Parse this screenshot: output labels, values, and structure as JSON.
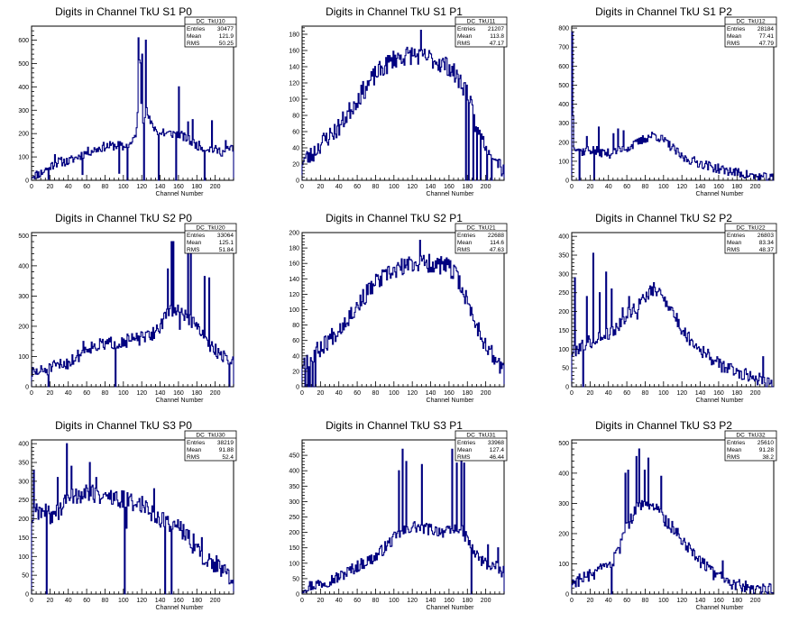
{
  "xlabel": "Channel Number",
  "stat_labels": {
    "entries": "Entries",
    "mean": "Mean",
    "rms": "RMS"
  },
  "chart_data": [
    {
      "type": "histogram",
      "title": "Digits in Channel TkU S1 P0",
      "stat_name": "DC_TkU10",
      "entries": "30477",
      "mean": "121.9",
      "rms": "50.25",
      "xlim": [
        0,
        220
      ],
      "ylim": [
        0,
        660
      ],
      "xticks": [
        0,
        20,
        40,
        60,
        80,
        100,
        120,
        140,
        160,
        180,
        200
      ],
      "yticks": [
        0,
        100,
        200,
        300,
        400,
        500,
        600
      ],
      "anchors": [
        [
          0,
          20
        ],
        [
          10,
          30
        ],
        [
          20,
          60
        ],
        [
          30,
          80
        ],
        [
          40,
          80
        ],
        [
          60,
          120
        ],
        [
          80,
          145
        ],
        [
          95,
          150
        ],
        [
          100,
          140
        ],
        [
          110,
          160
        ],
        [
          115,
          220
        ],
        [
          118,
          590
        ],
        [
          120,
          250
        ],
        [
          125,
          300
        ],
        [
          130,
          240
        ],
        [
          140,
          200
        ],
        [
          160,
          200
        ],
        [
          180,
          150
        ],
        [
          200,
          130
        ],
        [
          210,
          120
        ],
        [
          218,
          140
        ]
      ],
      "noise": 20,
      "seed": 11,
      "spikes": [
        [
          18,
          5
        ],
        [
          25,
          110
        ],
        [
          55,
          25
        ],
        [
          95,
          30
        ],
        [
          102,
          140
        ],
        [
          104,
          0
        ],
        [
          116,
          610
        ],
        [
          120,
          540
        ],
        [
          122,
          0
        ],
        [
          124,
          600
        ],
        [
          138,
          0
        ],
        [
          143,
          220
        ],
        [
          157,
          0
        ],
        [
          160,
          400
        ],
        [
          170,
          250
        ],
        [
          175,
          260
        ],
        [
          188,
          0
        ],
        [
          196,
          255
        ],
        [
          211,
          170
        ]
      ]
    },
    {
      "type": "histogram",
      "title": "Digits in Channel TkU S1 P1",
      "stat_name": "DC_TkU11",
      "entries": "21207",
      "mean": "113.8",
      "rms": "47.17",
      "xlim": [
        0,
        220
      ],
      "ylim": [
        0,
        190
      ],
      "xticks": [
        0,
        20,
        40,
        60,
        80,
        100,
        120,
        140,
        160,
        180,
        200
      ],
      "yticks": [
        0,
        20,
        40,
        60,
        80,
        100,
        120,
        140,
        160,
        180
      ],
      "anchors": [
        [
          0,
          25
        ],
        [
          10,
          30
        ],
        [
          20,
          45
        ],
        [
          40,
          65
        ],
        [
          60,
          100
        ],
        [
          80,
          130
        ],
        [
          100,
          150
        ],
        [
          120,
          155
        ],
        [
          140,
          150
        ],
        [
          160,
          140
        ],
        [
          170,
          125
        ],
        [
          180,
          110
        ],
        [
          190,
          60
        ],
        [
          200,
          45
        ],
        [
          210,
          35
        ],
        [
          218,
          15
        ]
      ],
      "noise": 12,
      "seed": 23,
      "spikes": [
        [
          129,
          185
        ],
        [
          178,
          0
        ],
        [
          181,
          0
        ],
        [
          186,
          0
        ],
        [
          190,
          0
        ],
        [
          194,
          0
        ],
        [
          201,
          0
        ],
        [
          206,
          0
        ]
      ]
    },
    {
      "type": "histogram",
      "title": "Digits in Channel TkU S1 P2",
      "stat_name": "DC_TkU12",
      "entries": "28184",
      "mean": "77.41",
      "rms": "47.79",
      "xlim": [
        0,
        220
      ],
      "ylim": [
        0,
        810
      ],
      "xticks": [
        0,
        20,
        40,
        60,
        80,
        100,
        120,
        140,
        160,
        180,
        200
      ],
      "yticks": [
        0,
        100,
        200,
        300,
        400,
        500,
        600,
        700,
        800
      ],
      "anchors": [
        [
          0,
          200
        ],
        [
          10,
          150
        ],
        [
          20,
          160
        ],
        [
          30,
          150
        ],
        [
          40,
          140
        ],
        [
          50,
          150
        ],
        [
          60,
          170
        ],
        [
          70,
          190
        ],
        [
          80,
          220
        ],
        [
          90,
          240
        ],
        [
          100,
          210
        ],
        [
          110,
          170
        ],
        [
          120,
          120
        ],
        [
          140,
          90
        ],
        [
          160,
          60
        ],
        [
          180,
          40
        ],
        [
          200,
          20
        ],
        [
          218,
          10
        ]
      ],
      "noise": 25,
      "seed": 37,
      "spikes": [
        [
          0,
          780
        ],
        [
          1,
          340
        ],
        [
          8,
          0
        ],
        [
          16,
          230
        ],
        [
          24,
          0
        ],
        [
          29,
          280
        ],
        [
          45,
          245
        ],
        [
          50,
          270
        ],
        [
          56,
          260
        ],
        [
          67,
          205
        ]
      ]
    },
    {
      "type": "histogram",
      "title": "Digits in Channel TkU S2 P0",
      "stat_name": "DC_TkU20",
      "entries": "33064",
      "mean": "125.1",
      "rms": "51.84",
      "xlim": [
        0,
        220
      ],
      "ylim": [
        0,
        510
      ],
      "xticks": [
        0,
        20,
        40,
        60,
        80,
        100,
        120,
        140,
        160,
        180,
        200
      ],
      "yticks": [
        0,
        100,
        200,
        300,
        400,
        500
      ],
      "anchors": [
        [
          0,
          45
        ],
        [
          10,
          50
        ],
        [
          20,
          60
        ],
        [
          30,
          70
        ],
        [
          40,
          80
        ],
        [
          50,
          100
        ],
        [
          60,
          130
        ],
        [
          80,
          140
        ],
        [
          100,
          150
        ],
        [
          120,
          160
        ],
        [
          130,
          170
        ],
        [
          140,
          200
        ],
        [
          150,
          250
        ],
        [
          160,
          250
        ],
        [
          170,
          230
        ],
        [
          180,
          200
        ],
        [
          190,
          150
        ],
        [
          200,
          120
        ],
        [
          210,
          100
        ],
        [
          218,
          80
        ]
      ],
      "noise": 22,
      "seed": 51,
      "spikes": [
        [
          18,
          0
        ],
        [
          56,
          150
        ],
        [
          91,
          0
        ],
        [
          148,
          390
        ],
        [
          152,
          480
        ],
        [
          154,
          480
        ],
        [
          161,
          190
        ],
        [
          170,
          470
        ],
        [
          173,
          440
        ],
        [
          188,
          365
        ],
        [
          193,
          360
        ],
        [
          215,
          0
        ]
      ]
    },
    {
      "type": "histogram",
      "title": "Digits in Channel TkU S2 P1",
      "stat_name": "DC_TkU21",
      "entries": "22688",
      "mean": "114.6",
      "rms": "47.63",
      "xlim": [
        0,
        220
      ],
      "ylim": [
        0,
        200
      ],
      "xticks": [
        0,
        20,
        40,
        60,
        80,
        100,
        120,
        140,
        160,
        180,
        200
      ],
      "yticks": [
        0,
        20,
        40,
        60,
        80,
        100,
        120,
        140,
        160,
        180,
        200
      ],
      "anchors": [
        [
          0,
          30
        ],
        [
          10,
          40
        ],
        [
          20,
          50
        ],
        [
          40,
          75
        ],
        [
          60,
          105
        ],
        [
          80,
          135
        ],
        [
          100,
          150
        ],
        [
          120,
          160
        ],
        [
          140,
          160
        ],
        [
          160,
          155
        ],
        [
          170,
          140
        ],
        [
          180,
          110
        ],
        [
          190,
          80
        ],
        [
          200,
          55
        ],
        [
          210,
          35
        ],
        [
          218,
          25
        ]
      ],
      "noise": 12,
      "seed": 67,
      "spikes": [
        [
          3,
          0
        ],
        [
          6,
          0
        ],
        [
          8,
          0
        ],
        [
          11,
          0
        ],
        [
          14,
          0
        ],
        [
          128,
          190
        ]
      ]
    },
    {
      "type": "histogram",
      "title": "Digits in Channel TkU S2 P2",
      "stat_name": "DC_TkU22",
      "entries": "26803",
      "mean": "83.34",
      "rms": "48.37",
      "xlim": [
        0,
        220
      ],
      "ylim": [
        0,
        410
      ],
      "xticks": [
        0,
        20,
        40,
        60,
        80,
        100,
        120,
        140,
        160,
        180,
        200
      ],
      "yticks": [
        0,
        50,
        100,
        150,
        200,
        250,
        300,
        350,
        400
      ],
      "anchors": [
        [
          0,
          90
        ],
        [
          10,
          110
        ],
        [
          20,
          120
        ],
        [
          30,
          130
        ],
        [
          40,
          140
        ],
        [
          50,
          160
        ],
        [
          60,
          190
        ],
        [
          70,
          210
        ],
        [
          80,
          240
        ],
        [
          90,
          260
        ],
        [
          100,
          240
        ],
        [
          110,
          200
        ],
        [
          120,
          150
        ],
        [
          140,
          100
        ],
        [
          160,
          60
        ],
        [
          180,
          40
        ],
        [
          200,
          25
        ],
        [
          218,
          10
        ]
      ],
      "noise": 18,
      "seed": 79,
      "spikes": [
        [
          3,
          290
        ],
        [
          12,
          0
        ],
        [
          16,
          240
        ],
        [
          23,
          355
        ],
        [
          30,
          250
        ],
        [
          37,
          305
        ],
        [
          43,
          260
        ],
        [
          55,
          210
        ],
        [
          62,
          240
        ],
        [
          71,
          180
        ],
        [
          208,
          80
        ]
      ]
    },
    {
      "type": "histogram",
      "title": "Digits in Channel TkU S3 P0",
      "stat_name": "DC_TkU30",
      "entries": "38219",
      "mean": "91.88",
      "rms": "52.4",
      "xlim": [
        0,
        220
      ],
      "ylim": [
        0,
        410
      ],
      "xticks": [
        0,
        20,
        40,
        60,
        80,
        100,
        120,
        140,
        160,
        180,
        200
      ],
      "yticks": [
        0,
        50,
        100,
        150,
        200,
        250,
        300,
        350,
        400
      ],
      "anchors": [
        [
          0,
          200
        ],
        [
          10,
          220
        ],
        [
          20,
          210
        ],
        [
          30,
          220
        ],
        [
          40,
          260
        ],
        [
          60,
          270
        ],
        [
          80,
          260
        ],
        [
          100,
          250
        ],
        [
          120,
          240
        ],
        [
          140,
          200
        ],
        [
          160,
          180
        ],
        [
          180,
          120
        ],
        [
          190,
          90
        ],
        [
          200,
          80
        ],
        [
          210,
          60
        ],
        [
          218,
          30
        ]
      ],
      "noise": 25,
      "seed": 89,
      "spikes": [
        [
          2,
          330
        ],
        [
          5,
          240
        ],
        [
          16,
          0
        ],
        [
          28,
          310
        ],
        [
          38,
          400
        ],
        [
          43,
          340
        ],
        [
          63,
          350
        ],
        [
          70,
          310
        ],
        [
          101,
          0
        ],
        [
          103,
          175
        ],
        [
          133,
          280
        ],
        [
          145,
          0
        ],
        [
          152,
          0
        ],
        [
          176,
          160
        ],
        [
          185,
          150
        ]
      ]
    },
    {
      "type": "histogram",
      "title": "Digits in Channel TkU S3 P1",
      "stat_name": "DC_TkU31",
      "entries": "33968",
      "mean": "127.4",
      "rms": "46.44",
      "xlim": [
        0,
        220
      ],
      "ylim": [
        0,
        500
      ],
      "xticks": [
        0,
        20,
        40,
        60,
        80,
        100,
        120,
        140,
        160,
        180,
        200
      ],
      "yticks": [
        0,
        50,
        100,
        150,
        200,
        250,
        300,
        350,
        400,
        450
      ],
      "anchors": [
        [
          0,
          20
        ],
        [
          20,
          35
        ],
        [
          40,
          55
        ],
        [
          60,
          90
        ],
        [
          80,
          120
        ],
        [
          100,
          180
        ],
        [
          120,
          220
        ],
        [
          140,
          210
        ],
        [
          160,
          200
        ],
        [
          170,
          220
        ],
        [
          180,
          180
        ],
        [
          190,
          120
        ],
        [
          200,
          100
        ],
        [
          210,
          90
        ],
        [
          218,
          70
        ]
      ],
      "noise": 20,
      "seed": 97,
      "spikes": [
        [
          105,
          400
        ],
        [
          109,
          470
        ],
        [
          113,
          430
        ],
        [
          130,
          420
        ],
        [
          163,
          470
        ],
        [
          168,
          425
        ],
        [
          173,
          470
        ],
        [
          176,
          425
        ],
        [
          184,
          0
        ],
        [
          190,
          140
        ],
        [
          202,
          160
        ],
        [
          213,
          150
        ]
      ]
    },
    {
      "type": "histogram",
      "title": "Digits in Channel TkU S3 P2",
      "stat_name": "DC_TkU32",
      "entries": "25610",
      "mean": "91.28",
      "rms": "38.2",
      "xlim": [
        0,
        220
      ],
      "ylim": [
        0,
        510
      ],
      "xticks": [
        0,
        20,
        40,
        60,
        80,
        100,
        120,
        140,
        160,
        180,
        200
      ],
      "yticks": [
        0,
        100,
        200,
        300,
        400,
        500
      ],
      "anchors": [
        [
          0,
          40
        ],
        [
          20,
          60
        ],
        [
          40,
          90
        ],
        [
          50,
          130
        ],
        [
          60,
          220
        ],
        [
          70,
          280
        ],
        [
          80,
          300
        ],
        [
          90,
          290
        ],
        [
          100,
          250
        ],
        [
          110,
          220
        ],
        [
          120,
          180
        ],
        [
          130,
          150
        ],
        [
          140,
          110
        ],
        [
          150,
          80
        ],
        [
          160,
          55
        ],
        [
          170,
          40
        ],
        [
          180,
          30
        ],
        [
          200,
          20
        ],
        [
          218,
          15
        ]
      ],
      "noise": 22,
      "seed": 103,
      "spikes": [
        [
          43,
          0
        ],
        [
          58,
          400
        ],
        [
          61,
          410
        ],
        [
          70,
          455
        ],
        [
          73,
          480
        ],
        [
          79,
          410
        ],
        [
          83,
          450
        ],
        [
          97,
          390
        ],
        [
          164,
          110
        ]
      ]
    }
  ]
}
